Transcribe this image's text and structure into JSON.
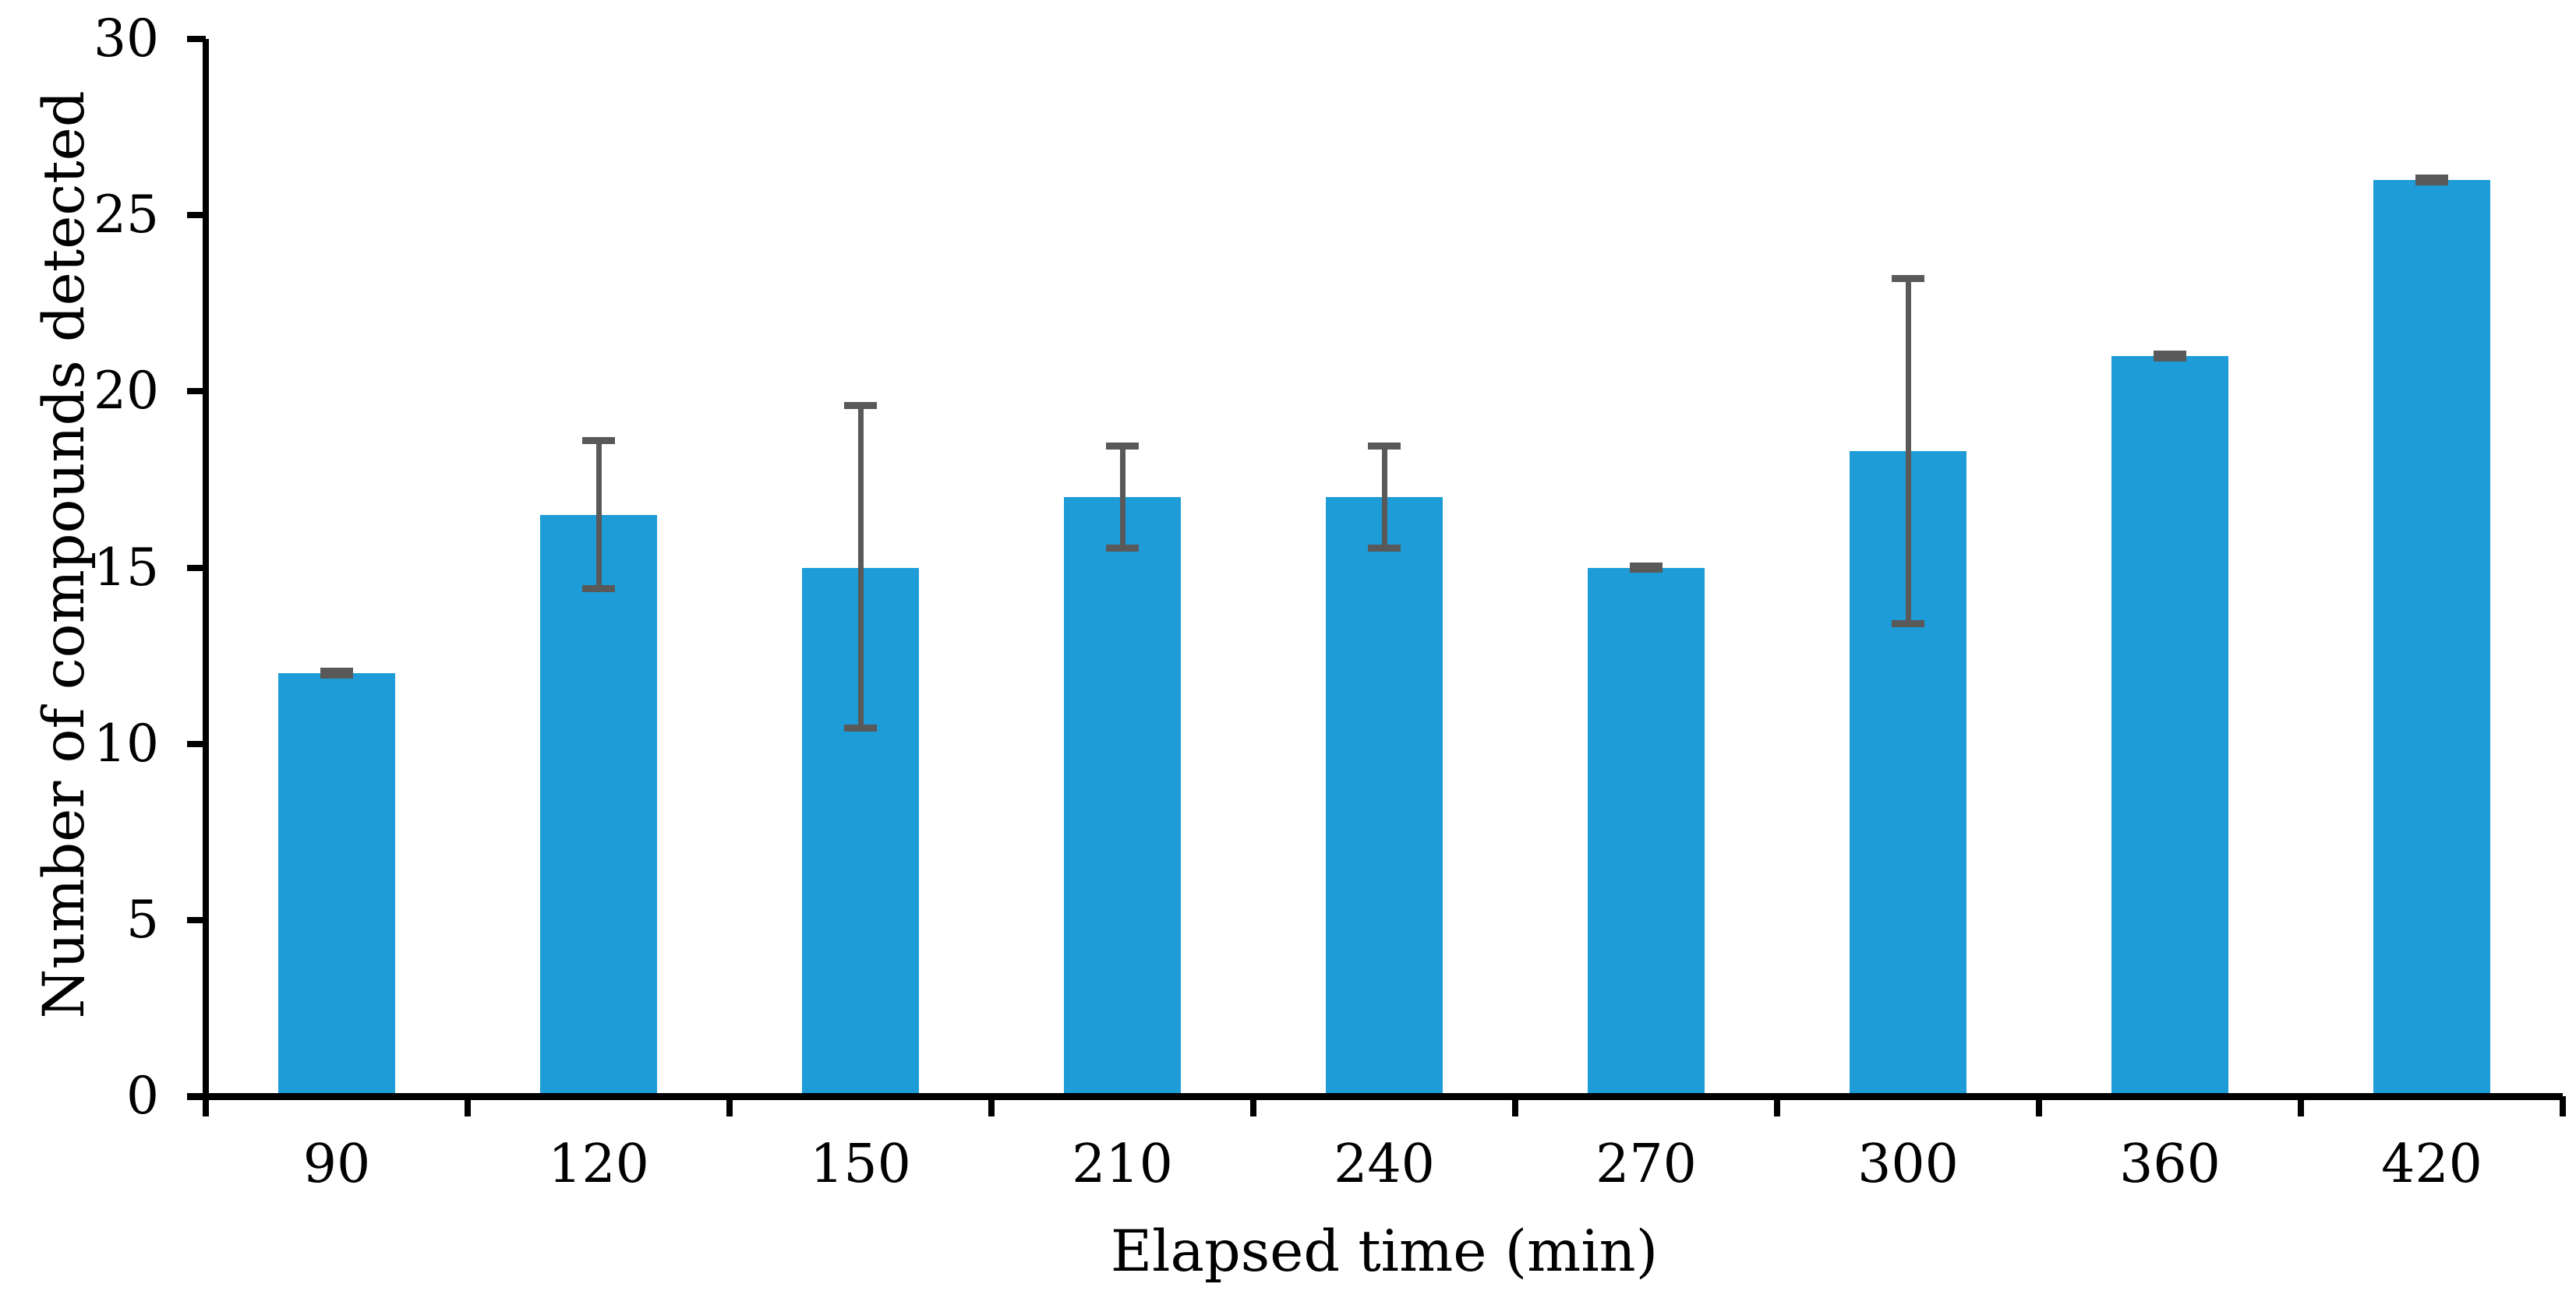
{
  "chart_data": {
    "type": "bar",
    "title": "",
    "xlabel": "Elapsed time (min)",
    "ylabel": "Number of compounds detected",
    "categories": [
      "90",
      "120",
      "150",
      "210",
      "240",
      "270",
      "300",
      "360",
      "420"
    ],
    "values": [
      12,
      16.5,
      15,
      17,
      17,
      15,
      18.3,
      21,
      26
    ],
    "error_plus": [
      0.05,
      2.1,
      4.6,
      1.45,
      1.45,
      0.05,
      4.9,
      0.05,
      0.05
    ],
    "error_minus": [
      0.05,
      2.1,
      4.55,
      1.45,
      1.45,
      0.05,
      4.9,
      0.05,
      0.05
    ],
    "y_ticks": [
      0,
      5,
      10,
      15,
      20,
      25,
      30
    ],
    "ylim": [
      0,
      30
    ],
    "grid": false,
    "legend": false,
    "colors": {
      "bar": "#1E9CD7",
      "error_bar": "#595959",
      "axis": "#000000",
      "text": "#000000",
      "background": "#FFFFFF"
    }
  }
}
